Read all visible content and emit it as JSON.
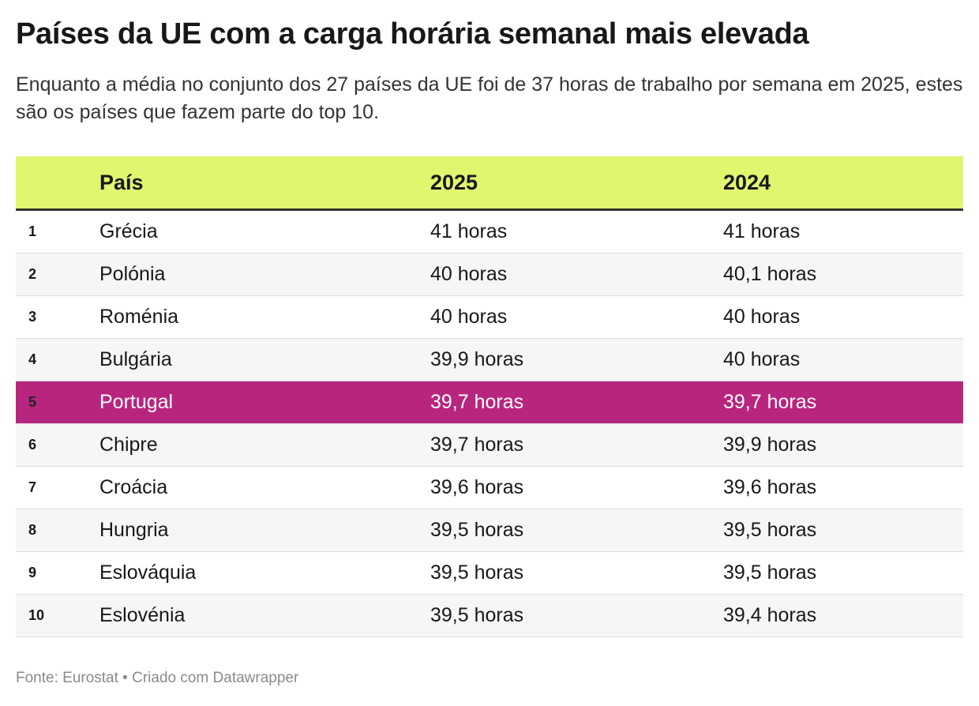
{
  "header": {
    "title": "Países da UE com a carga horária semanal mais elevada",
    "subtitle": "Enquanto a média no conjunto dos 27 países da UE foi de 37 horas de trabalho por semana em 2025, estes são os países que fazem parte do top 10."
  },
  "table": {
    "columns": [
      "País",
      "2025",
      "2024"
    ],
    "rows": [
      [
        "1",
        "Grécia",
        "41 horas",
        "41 horas"
      ],
      [
        "2",
        "Polónia",
        "40 horas",
        "40,1 horas"
      ],
      [
        "3",
        "Roménia",
        "40 horas",
        "40 horas"
      ],
      [
        "4",
        "Bulgária",
        "39,9 horas",
        "40 horas"
      ],
      [
        "5",
        "Portugal",
        "39,7 horas",
        "39,7 horas"
      ],
      [
        "6",
        "Chipre",
        "39,7 horas",
        "39,9 horas"
      ],
      [
        "7",
        "Croácia",
        "39,6 horas",
        "39,6 horas"
      ],
      [
        "8",
        "Hungria",
        "39,5 horas",
        "39,5 horas"
      ],
      [
        "9",
        "Eslováquia",
        "39,5 horas",
        "39,5 horas"
      ],
      [
        "10",
        "Eslovénia",
        "39,5 horas",
        "39,4 horas"
      ]
    ]
  },
  "footer": {
    "source": "Fonte: Eurostat • Criado com Datawrapper"
  }
}
